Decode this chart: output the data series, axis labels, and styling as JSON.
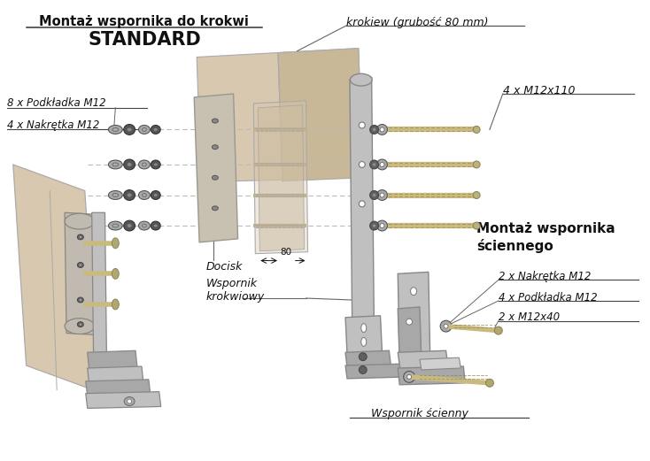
{
  "title_line1": "Montaż wspornika do krokwi",
  "title_line2": "STANDARD",
  "bg_color": "#ffffff",
  "label_krokiew": "krokiew (grubość 80 mm)",
  "label_m12x110": "4 x M12x110",
  "label_podkladka_top": "8 x Podkładka M12",
  "label_nakretka_top": "4 x Nakrętka M12",
  "label_docisk": "Docisk",
  "label_wspornik_krokwiowy": "Wspornik\nkrokwiowy",
  "label_80": "80",
  "label_montaz_sciennego_1": "Montaż wspornika",
  "label_montaz_sciennego_2": "ściennego",
  "label_nakretka_bot": "2 x Nakrętka M12",
  "label_podkladka_bot": "4 x Podkładka M12",
  "label_m12x40": "2 x M12x40",
  "label_wspornik_scienny": "Wspornik ścienny",
  "rafter_color": "#d8c8b0",
  "rafter_edge": "#aaaaaa",
  "rafter_color2": "#c8b898",
  "bracket_color": "#c0c0c0",
  "bracket_color_dark": "#a8a8a8",
  "bracket_edge": "#888888",
  "bolt_color": "#c8ba80",
  "bolt_color2": "#b8a870",
  "washer_color": "#888888",
  "washer_color2": "#aaaaaa",
  "plate_color": "#d0c8b8",
  "plate_edge": "#aaaaaa",
  "clamping_color": "#c8bca8",
  "line_color": "#888888",
  "text_color": "#111111",
  "leader_color": "#666666"
}
